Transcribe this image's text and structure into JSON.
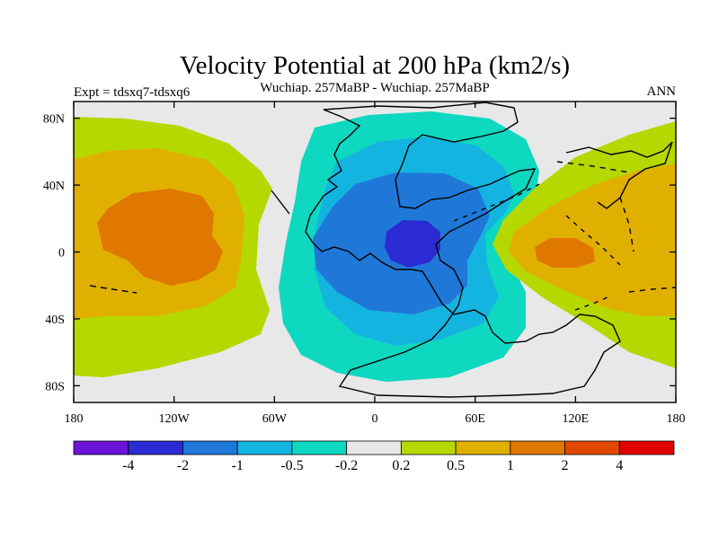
{
  "chart_data": {
    "type": "heatmap",
    "subtype": "filled-contour-map",
    "title": "Velocity Potential at 200 hPa (km2/s)",
    "subtitle_left": "Expt = tdsxq7-tdsxq6",
    "subtitle_center": "Wuchiap. 257MaBP - Wuchiap. 257MaBP",
    "subtitle_right": "ANN",
    "xlim": [
      -180,
      180
    ],
    "ylim": [
      -90,
      90
    ],
    "x_ticks": [
      -180,
      -120,
      -60,
      0,
      60,
      120,
      180
    ],
    "x_tick_labels": [
      "180",
      "120W",
      "60W",
      "0",
      "60E",
      "120E",
      "180"
    ],
    "y_ticks": [
      80,
      40,
      0,
      -40,
      -80
    ],
    "y_tick_labels": [
      "80N",
      "40N",
      "0",
      "40S",
      "80S"
    ],
    "colorbar": {
      "levels": [
        "-4",
        "-2",
        "-1",
        "-0.5",
        "-0.2",
        "0.2",
        "0.5",
        "1",
        "2",
        "4"
      ],
      "colors": [
        "#6a14d8",
        "#2b2bd4",
        "#1f78d8",
        "#14b4e0",
        "#0ed8c0",
        "#e8e8e8",
        "#b4d800",
        "#e0b000",
        "#e07800",
        "#e04800",
        "#e00000"
      ]
    },
    "background_color": "#e8e8e8",
    "centers": [
      {
        "name": "pacific-positive-center",
        "lon": -130,
        "lat": 10,
        "max_bin": "1 to 2"
      },
      {
        "name": "tethys-negative-center",
        "lon": 25,
        "lat": 5,
        "min_bin": "-4 to -2"
      },
      {
        "name": "eastern-positive-center",
        "lon": 115,
        "lat": 0,
        "max_bin": "1 to 2"
      }
    ]
  }
}
